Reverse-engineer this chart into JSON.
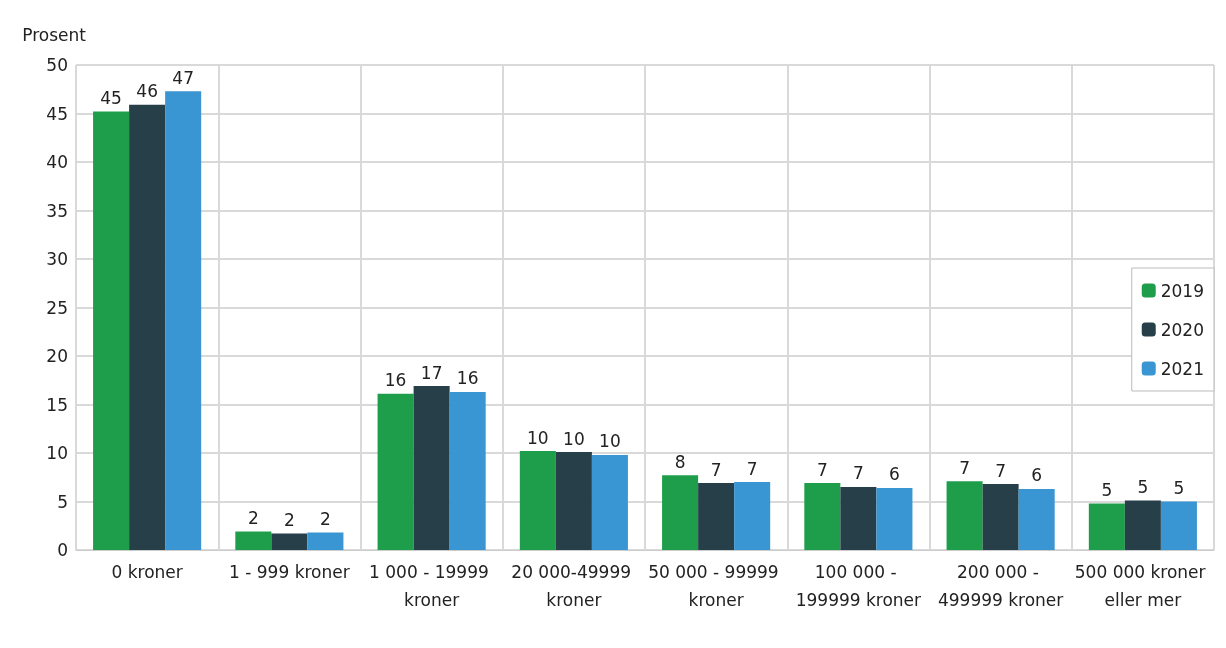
{
  "chart_data": {
    "type": "bar",
    "ylabel": "Prosent",
    "categories": [
      "0 kroner",
      "1 - 999 kroner",
      "1 000 - 19999 kroner",
      "20 000-49999 kroner",
      "50 000 - 99999 kroner",
      "100 000 - 199999 kroner",
      "200 000 - 499999 kroner",
      "500 000 kroner eller mer"
    ],
    "series": [
      {
        "name": "2019",
        "color": "#1e9e4a",
        "values": [
          45.2,
          1.9,
          16.1,
          10.2,
          7.7,
          6.9,
          7.1,
          4.8
        ],
        "value_labels": [
          "45",
          "2",
          "16",
          "10",
          "8",
          "7",
          "7",
          "5"
        ]
      },
      {
        "name": "2020",
        "color": "#263f48",
        "values": [
          45.9,
          1.7,
          16.9,
          10.1,
          6.9,
          6.5,
          6.8,
          5.1
        ],
        "value_labels": [
          "46",
          "2",
          "17",
          "10",
          "7",
          "7",
          "7",
          "5"
        ]
      },
      {
        "name": "2021",
        "color": "#3a96d2",
        "values": [
          47.3,
          1.8,
          16.3,
          9.8,
          7.0,
          6.4,
          6.3,
          5.0
        ],
        "value_labels": [
          "47",
          "2",
          "16",
          "10",
          "7",
          "6",
          "6",
          "5"
        ]
      }
    ],
    "ylim": [
      0,
      50
    ],
    "yticks": [
      0,
      5,
      10,
      15,
      20,
      25,
      30,
      35,
      40,
      45,
      50
    ],
    "grid": true,
    "legend": "right"
  }
}
